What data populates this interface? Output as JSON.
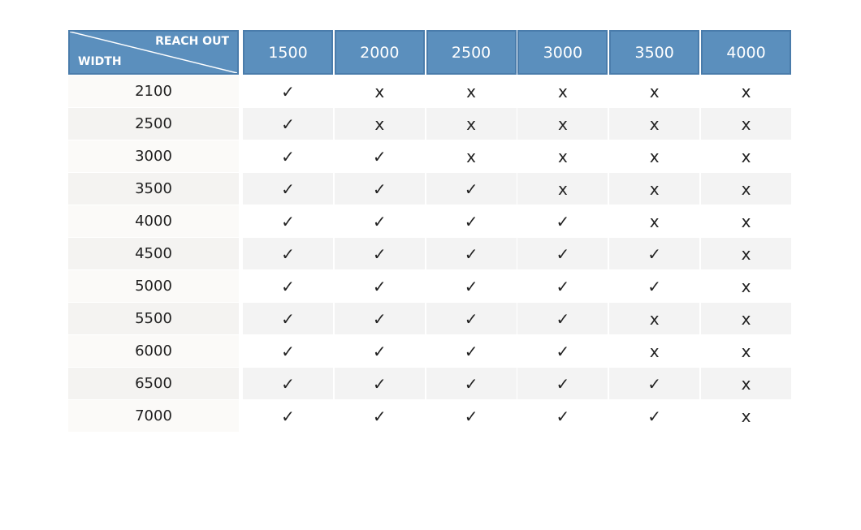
{
  "table": {
    "corner": {
      "top": "REACH OUT",
      "bottom": "WIDTH"
    },
    "columns": [
      "1500",
      "2000",
      "2500",
      "3000",
      "3500",
      "4000"
    ],
    "rows": [
      [
        "2100",
        "✓",
        "x",
        "x",
        "x",
        "x",
        "x"
      ],
      [
        "2500",
        "✓",
        "x",
        "x",
        "x",
        "x",
        "x"
      ],
      [
        "3000",
        "✓",
        "✓",
        "x",
        "x",
        "x",
        "x"
      ],
      [
        "3500",
        "✓",
        "✓",
        "✓",
        "x",
        "x",
        "x"
      ],
      [
        "4000",
        "✓",
        "✓",
        "✓",
        "✓",
        "x",
        "x"
      ],
      [
        "4500",
        "✓",
        "✓",
        "✓",
        "✓",
        "✓",
        "x"
      ],
      [
        "5000",
        "✓",
        "✓",
        "✓",
        "✓",
        "✓",
        "x"
      ],
      [
        "5500",
        "✓",
        "✓",
        "✓",
        "✓",
        "x",
        "x"
      ],
      [
        "6000",
        "✓",
        "✓",
        "✓",
        "✓",
        "x",
        "x"
      ],
      [
        "6500",
        "✓",
        "✓",
        "✓",
        "✓",
        "✓",
        "x"
      ],
      [
        "7000",
        "✓",
        "✓",
        "✓",
        "✓",
        "✓",
        "x"
      ]
    ]
  }
}
